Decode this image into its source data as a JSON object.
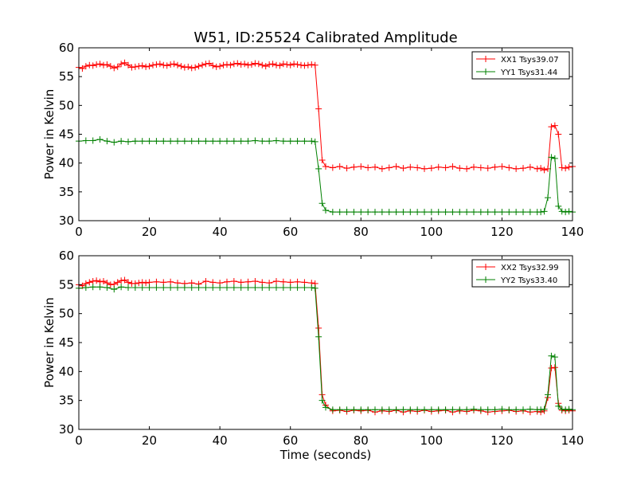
{
  "figure": {
    "title": "W51, ID:25524 Calibrated Amplitude",
    "xlabel": "Time (seconds)"
  },
  "chart_data": [
    {
      "type": "line",
      "title": "W51, ID:25524 Calibrated Amplitude",
      "xlabel": "",
      "ylabel": "Power in Kelvin",
      "xlim": [
        0,
        140
      ],
      "ylim": [
        30,
        60
      ],
      "xticks": [
        "0",
        "20",
        "40",
        "60",
        "80",
        "100",
        "120",
        "140"
      ],
      "yticks": [
        "30",
        "35",
        "40",
        "45",
        "50",
        "55",
        "60"
      ],
      "grid": false,
      "marker": "+",
      "legend": "top-right",
      "series": [
        {
          "name": "XX1 Tsys39.07",
          "color": "#ff0000",
          "x": [
            0,
            1,
            2,
            3,
            4,
            5,
            6,
            7,
            8,
            9,
            10,
            11,
            12,
            13,
            14,
            15,
            16,
            17,
            18,
            19,
            20,
            21,
            22,
            23,
            24,
            25,
            26,
            27,
            28,
            29,
            30,
            31,
            32,
            33,
            34,
            35,
            36,
            37,
            38,
            39,
            40,
            41,
            42,
            43,
            44,
            45,
            46,
            47,
            48,
            49,
            50,
            51,
            52,
            53,
            54,
            55,
            56,
            57,
            58,
            59,
            60,
            61,
            62,
            63,
            64,
            65,
            66,
            67,
            68,
            69,
            70,
            72,
            74,
            76,
            78,
            80,
            82,
            84,
            86,
            88,
            90,
            92,
            94,
            96,
            98,
            100,
            102,
            104,
            106,
            108,
            110,
            112,
            114,
            116,
            118,
            120,
            122,
            124,
            126,
            128,
            130,
            131,
            132,
            133,
            134,
            135,
            136,
            137,
            138,
            139,
            140
          ],
          "y": [
            56.6,
            56.4,
            56.8,
            57.0,
            56.9,
            57.1,
            57.2,
            57.0,
            57.1,
            56.8,
            56.5,
            56.7,
            57.2,
            57.4,
            57.0,
            56.6,
            56.7,
            56.8,
            56.9,
            56.7,
            56.8,
            57.0,
            57.1,
            57.2,
            57.0,
            56.9,
            57.1,
            57.2,
            57.0,
            56.8,
            56.6,
            56.7,
            56.5,
            56.6,
            56.8,
            57.0,
            57.2,
            57.3,
            56.9,
            56.7,
            56.8,
            57.0,
            57.1,
            57.0,
            57.2,
            57.3,
            57.1,
            57.2,
            57.0,
            57.1,
            57.3,
            57.2,
            57.0,
            56.8,
            57.1,
            57.2,
            57.0,
            56.9,
            57.2,
            57.1,
            57.0,
            57.2,
            57.1,
            57.0,
            56.9,
            57.0,
            57.1,
            57.0,
            49.4,
            40.5,
            39.4,
            39.2,
            39.4,
            39.1,
            39.3,
            39.4,
            39.2,
            39.3,
            39.0,
            39.2,
            39.4,
            39.1,
            39.3,
            39.2,
            39.0,
            39.1,
            39.3,
            39.2,
            39.4,
            39.1,
            39.0,
            39.3,
            39.2,
            39.1,
            39.3,
            39.4,
            39.2,
            39.0,
            39.1,
            39.3,
            39.0,
            39.1,
            38.8,
            39.0,
            46.3,
            46.5,
            45.0,
            39.2,
            39.1,
            39.3,
            39.4
          ]
        },
        {
          "name": "YY1 Tsys31.44",
          "color": "#008000",
          "x": [
            0,
            2,
            4,
            6,
            8,
            10,
            12,
            14,
            16,
            18,
            20,
            22,
            24,
            26,
            28,
            30,
            32,
            34,
            36,
            38,
            40,
            42,
            44,
            46,
            48,
            50,
            52,
            54,
            56,
            58,
            60,
            62,
            64,
            66,
            67,
            68,
            69,
            70,
            72,
            74,
            76,
            78,
            80,
            82,
            84,
            86,
            88,
            90,
            92,
            94,
            96,
            98,
            100,
            102,
            104,
            106,
            108,
            110,
            112,
            114,
            116,
            118,
            120,
            122,
            124,
            126,
            128,
            130,
            131,
            132,
            133,
            134,
            135,
            136,
            137,
            138,
            139,
            140
          ],
          "y": [
            43.8,
            43.9,
            43.9,
            44.1,
            43.8,
            43.6,
            43.8,
            43.7,
            43.8,
            43.8,
            43.8,
            43.8,
            43.8,
            43.8,
            43.8,
            43.8,
            43.8,
            43.8,
            43.8,
            43.8,
            43.8,
            43.8,
            43.8,
            43.8,
            43.8,
            43.9,
            43.8,
            43.8,
            43.9,
            43.8,
            43.8,
            43.8,
            43.8,
            43.8,
            43.7,
            39.0,
            33.0,
            31.8,
            31.5,
            31.5,
            31.5,
            31.5,
            31.5,
            31.5,
            31.5,
            31.5,
            31.5,
            31.5,
            31.5,
            31.5,
            31.5,
            31.5,
            31.5,
            31.5,
            31.5,
            31.5,
            31.5,
            31.5,
            31.5,
            31.5,
            31.5,
            31.5,
            31.5,
            31.5,
            31.5,
            31.5,
            31.5,
            31.5,
            31.5,
            31.6,
            34.0,
            41.0,
            40.8,
            32.5,
            31.6,
            31.5,
            31.6,
            31.5
          ]
        }
      ]
    },
    {
      "type": "line",
      "title": "",
      "xlabel": "Time (seconds)",
      "ylabel": "Power in Kelvin",
      "xlim": [
        0,
        140
      ],
      "ylim": [
        30,
        60
      ],
      "xticks": [
        "0",
        "20",
        "40",
        "60",
        "80",
        "100",
        "120",
        "140"
      ],
      "yticks": [
        "30",
        "35",
        "40",
        "45",
        "50",
        "55",
        "60"
      ],
      "grid": false,
      "marker": "+",
      "legend": "top-right",
      "series": [
        {
          "name": "XX2 Tsys32.99",
          "color": "#ff0000",
          "x": [
            0,
            1,
            2,
            3,
            4,
            5,
            6,
            7,
            8,
            9,
            10,
            11,
            12,
            13,
            14,
            15,
            16,
            17,
            18,
            19,
            20,
            22,
            24,
            26,
            28,
            30,
            32,
            34,
            36,
            38,
            40,
            42,
            44,
            46,
            48,
            50,
            52,
            54,
            56,
            58,
            60,
            62,
            64,
            66,
            67,
            68,
            69,
            70,
            72,
            74,
            76,
            78,
            80,
            82,
            84,
            86,
            88,
            90,
            92,
            94,
            96,
            98,
            100,
            102,
            104,
            106,
            108,
            110,
            112,
            114,
            116,
            118,
            120,
            122,
            124,
            126,
            128,
            130,
            131,
            132,
            133,
            134,
            135,
            136,
            137,
            138,
            139,
            140
          ],
          "y": [
            55.0,
            54.8,
            55.2,
            55.4,
            55.6,
            55.7,
            55.5,
            55.6,
            55.3,
            55.0,
            55.1,
            55.4,
            55.7,
            55.8,
            55.4,
            55.2,
            55.2,
            55.3,
            55.4,
            55.3,
            55.4,
            55.5,
            55.4,
            55.5,
            55.3,
            55.2,
            55.3,
            55.1,
            55.6,
            55.4,
            55.3,
            55.5,
            55.6,
            55.4,
            55.5,
            55.6,
            55.4,
            55.3,
            55.6,
            55.5,
            55.4,
            55.5,
            55.4,
            55.3,
            55.2,
            47.5,
            36.0,
            34.2,
            33.2,
            33.3,
            33.1,
            33.3,
            33.2,
            33.3,
            33.0,
            33.2,
            33.1,
            33.3,
            33.0,
            33.2,
            33.1,
            33.3,
            33.1,
            33.2,
            33.3,
            33.0,
            33.2,
            33.1,
            33.3,
            33.2,
            33.0,
            33.1,
            33.2,
            33.3,
            33.1,
            33.2,
            33.0,
            33.1,
            33.0,
            33.2,
            35.5,
            40.6,
            40.7,
            34.5,
            33.3,
            33.2,
            33.3,
            33.2
          ]
        },
        {
          "name": "YY2 Tsys33.40",
          "color": "#008000",
          "x": [
            0,
            2,
            4,
            6,
            8,
            10,
            12,
            14,
            16,
            18,
            20,
            22,
            24,
            26,
            28,
            30,
            32,
            34,
            36,
            38,
            40,
            42,
            44,
            46,
            48,
            50,
            52,
            54,
            56,
            58,
            60,
            62,
            64,
            66,
            67,
            68,
            69,
            70,
            72,
            74,
            76,
            78,
            80,
            82,
            84,
            86,
            88,
            90,
            92,
            94,
            96,
            98,
            100,
            102,
            104,
            106,
            108,
            110,
            112,
            114,
            116,
            118,
            120,
            122,
            124,
            126,
            128,
            130,
            131,
            132,
            133,
            134,
            135,
            136,
            137,
            138,
            139,
            140
          ],
          "y": [
            54.4,
            54.5,
            54.6,
            54.6,
            54.5,
            54.2,
            54.6,
            54.5,
            54.5,
            54.5,
            54.5,
            54.5,
            54.5,
            54.5,
            54.5,
            54.5,
            54.5,
            54.5,
            54.5,
            54.5,
            54.5,
            54.5,
            54.5,
            54.5,
            54.5,
            54.5,
            54.5,
            54.5,
            54.5,
            54.5,
            54.5,
            54.5,
            54.5,
            54.5,
            54.4,
            46.0,
            35.0,
            33.8,
            33.4,
            33.4,
            33.4,
            33.4,
            33.4,
            33.4,
            33.4,
            33.4,
            33.4,
            33.4,
            33.4,
            33.4,
            33.4,
            33.4,
            33.4,
            33.4,
            33.4,
            33.4,
            33.4,
            33.4,
            33.5,
            33.4,
            33.4,
            33.4,
            33.5,
            33.4,
            33.4,
            33.4,
            33.5,
            33.4,
            33.4,
            33.5,
            36.0,
            42.7,
            42.5,
            34.0,
            33.5,
            33.4,
            33.5,
            33.4
          ]
        }
      ]
    }
  ]
}
